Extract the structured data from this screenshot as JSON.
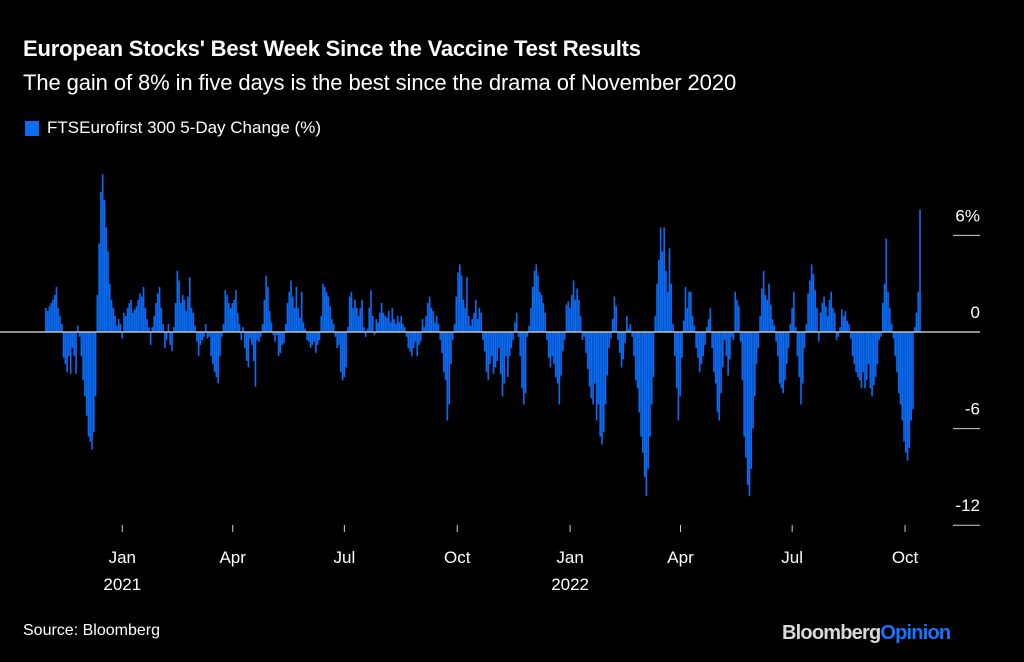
{
  "header": {
    "title": "European Stocks' Best Week Since the Vaccine Test Results",
    "subtitle": "The gain of 8% in five days is the best since the drama of November 2020"
  },
  "footer": {
    "source": "Source: Bloomberg",
    "brand_main": "Bloomberg",
    "brand_accent": "Opinion"
  },
  "colors": {
    "bar": "#0a6cf5",
    "zero_line": "#bfbfbf",
    "brand_accent": "#1a73ff",
    "background": "#000000"
  },
  "chart_data": {
    "type": "bar",
    "title": "European Stocks' Best Week Since the Vaccine Test Results",
    "subtitle": "The gain of 8% in five days is the best since the drama of November 2020",
    "legend": [
      {
        "label": "FTSEurofirst 300 5-Day Change (%)",
        "color": "#0a6cf5"
      }
    ],
    "legend_placement": "top-left",
    "xlabel": "",
    "ylabel": "",
    "x_range": [
      "2020-10-30",
      "2022-10-14"
    ],
    "ylim": [
      -13.5,
      9
    ],
    "y_ticks": [
      {
        "value": 6,
        "label": "6%"
      },
      {
        "value": 0,
        "label": "0"
      },
      {
        "value": -6,
        "label": "-6"
      },
      {
        "value": -12,
        "label": "-12"
      }
    ],
    "x_ticks": [
      {
        "date": "2021-01-01",
        "label": "Jan",
        "sublabel": "2021"
      },
      {
        "date": "2021-04-01",
        "label": "Apr",
        "sublabel": ""
      },
      {
        "date": "2021-07-01",
        "label": "Jul",
        "sublabel": ""
      },
      {
        "date": "2021-10-01",
        "label": "Oct",
        "sublabel": ""
      },
      {
        "date": "2022-01-01",
        "label": "Jan",
        "sublabel": "2022"
      },
      {
        "date": "2022-04-01",
        "label": "Apr",
        "sublabel": ""
      },
      {
        "date": "2022-07-01",
        "label": "Jul",
        "sublabel": ""
      },
      {
        "date": "2022-10-01",
        "label": "Oct",
        "sublabel": ""
      }
    ],
    "y_axis_side": "right",
    "grid": false,
    "series": [
      {
        "name": "FTSEurofirst 300 5-Day Change (%)",
        "start_date": "2020-10-30",
        "end_date": "2022-10-14",
        "frequency": "every-2-trading-days",
        "values": [
          1.5,
          1.3,
          1.6,
          1.8,
          2.0,
          2.3,
          2.8,
          1.5,
          1.0,
          0.5,
          -1.6,
          -2.0,
          -2.5,
          -1.5,
          -2.6,
          -1.0,
          -1.5,
          -2.6,
          0.4,
          -0.3,
          -1.5,
          -3.0,
          -4.0,
          -5.2,
          -6.5,
          -6.8,
          -7.3,
          -6.2,
          -4.0,
          2.3,
          5.5,
          8.7,
          9.8,
          8.2,
          6.5,
          5.0,
          3.0,
          2.0,
          1.5,
          1.0,
          0.4,
          0.8,
          0.5,
          -0.4,
          1.2,
          1.0,
          1.5,
          1.8,
          2.0,
          1.2,
          1.4,
          1.6,
          2.0,
          2.4,
          2.2,
          2.8,
          1.5,
          0.8,
          0.3,
          -0.8,
          0.3,
          1.0,
          1.8,
          2.4,
          2.8,
          1.5,
          0.5,
          -1.0,
          -0.5,
          0.5,
          -0.8,
          -1.2,
          0.3,
          1.8,
          3.8,
          3.2,
          1.8,
          2.3,
          2.0,
          1.3,
          2.2,
          3.4,
          1.5,
          1.2,
          0.4,
          -0.6,
          -1.5,
          -0.8,
          -0.5,
          -0.3,
          0.5,
          -0.4,
          -0.3,
          -1.5,
          -2.0,
          -2.5,
          -2.8,
          -3.2,
          -1.5,
          -0.3,
          0.5,
          2.6,
          2.3,
          1.8,
          1.5,
          1.8,
          2.0,
          2.6,
          1.2,
          0.5,
          -0.5,
          0.3,
          -1.0,
          -1.8,
          -2.2,
          -0.4,
          -0.8,
          -1.8,
          -3.4,
          -0.5,
          -0.6,
          -0.3,
          0.5,
          2.0,
          3.5,
          2.8,
          1.3,
          0.6,
          -0.2,
          -0.6,
          -0.2,
          -1.5,
          -1.3,
          -0.8,
          -0.7,
          0.5,
          1.8,
          2.5,
          3.2,
          2.2,
          1.5,
          2.8,
          1.5,
          0.9,
          2.5,
          0.6,
          0.2,
          -0.5,
          -0.6,
          -1.0,
          -0.8,
          -0.6,
          -1.3,
          -0.8,
          -0.5,
          1.0,
          3.0,
          2.8,
          2.5,
          2.2,
          1.6,
          0.8,
          0.5,
          -0.3,
          -1.0,
          -0.8,
          -2.5,
          -3.0,
          -2.8,
          -2.2,
          0.3,
          2.2,
          2.5,
          1.5,
          2.0,
          1.5,
          1.0,
          1.5,
          2.0,
          0.3,
          -0.3,
          0.2,
          1.5,
          2.6,
          1.0,
          -0.2,
          0.8,
          0.6,
          1.2,
          1.8,
          1.2,
          1.0,
          0.9,
          1.3,
          0.6,
          1.5,
          0.8,
          0.5,
          1.0,
          0.6,
          1.0,
          0.5,
          0.3,
          -0.3,
          -1.0,
          -1.2,
          -1.5,
          -1.0,
          -0.6,
          -1.5,
          -0.8,
          -0.6,
          0.8,
          0.3,
          1.0,
          1.8,
          2.2,
          1.5,
          1.3,
          0.6,
          1.0,
          0.5,
          -0.5,
          -1.3,
          -2.5,
          -3.0,
          -5.5,
          -4.5,
          -2.0,
          -0.5,
          0.5,
          2.2,
          3.7,
          4.2,
          3.5,
          2.0,
          1.5,
          3.4,
          1.0,
          0.4,
          0.8,
          1.2,
          2.0,
          0.8,
          1.5,
          1.2,
          -0.5,
          -1.2,
          -2.5,
          -3.0,
          -2.0,
          -1.5,
          -2.6,
          -2.2,
          -1.8,
          -1.0,
          -2.6,
          -4.0,
          -3.2,
          -1.5,
          -2.8,
          -1.5,
          -1.0,
          -0.5,
          0.6,
          1.2,
          -0.3,
          -1.5,
          -3.5,
          -4.5,
          -3.8,
          -0.3,
          0.4,
          1.5,
          2.8,
          3.8,
          4.2,
          3.5,
          2.5,
          2.3,
          1.8,
          1.2,
          -0.5,
          -1.6,
          -2.2,
          -1.5,
          -2.0,
          -2.8,
          -3.2,
          -4.5,
          -2.7,
          -1.2,
          -0.5,
          1.7,
          1.9,
          1.5,
          2.3,
          3.2,
          2.0,
          2.7,
          2.0,
          1.0,
          -0.5,
          -0.3,
          -1.3,
          -2.3,
          -3.4,
          -4.1,
          -4.5,
          -3.2,
          -5.5,
          -4.5,
          -6.5,
          -7.0,
          -6.2,
          -4.5,
          -2.7,
          -1.0,
          -0.4,
          0.8,
          2.2,
          1.6,
          -0.5,
          -1.3,
          -2.2,
          -1.7,
          -0.7,
          1.0,
          0.2,
          0.5,
          -0.3,
          -1.5,
          -3.0,
          -3.5,
          -5.0,
          -6.5,
          -7.5,
          -9.0,
          -10.2,
          -8.5,
          -6.5,
          -4.5,
          -2.8,
          1.0,
          3.0,
          4.5,
          6.5,
          5.0,
          6.5,
          3.8,
          2.5,
          5.2,
          3.0,
          0.5,
          -1.5,
          -3.5,
          -5.5,
          -4.0,
          -1.6,
          0.7,
          2.8,
          1.5,
          2.5,
          2.5,
          1.0,
          0.4,
          -1.0,
          -1.6,
          -2.5,
          -2.0,
          -1.5,
          -0.8,
          0.3,
          0.8,
          1.5,
          -1.0,
          -2.5,
          -3.2,
          -5.0,
          -5.5,
          -3.8,
          -2.2,
          -0.5,
          -1.5,
          -2.7,
          -1.7,
          -0.3,
          -0.5,
          2.5,
          2.0,
          1.6,
          -0.6,
          -3.0,
          -6.5,
          -7.8,
          -9.5,
          -10.2,
          -8.5,
          -6.0,
          -4.0,
          -2.0,
          -1.0,
          1.0,
          2.7,
          3.8,
          2.3,
          2.0,
          3.0,
          1.7,
          0.8,
          0.4,
          -0.6,
          -1.5,
          -3.2,
          -3.5,
          -3.8,
          -3.0,
          -2.0,
          -1.0,
          0.5,
          1.5,
          2.5,
          0.3,
          -1.5,
          -2.8,
          -4.5,
          -3.2,
          -1.0,
          0.5,
          2.4,
          3.2,
          4.2,
          3.6,
          2.6,
          1.5,
          -0.6,
          1.2,
          1.8,
          2.2,
          1.6,
          1.0,
          2.0,
          2.5,
          1.5,
          1.2,
          -0.5,
          -0.3,
          0.3,
          1.4,
          1.0,
          1.3,
          0.7,
          0.5,
          -0.4,
          -1.5,
          -2.0,
          -2.5,
          -2.8,
          -3.0,
          -3.5,
          -2.5,
          -3.5,
          -3.0,
          -2.0,
          -3.5,
          -4.0,
          -3.3,
          -2.8,
          -2.0,
          -0.5,
          -0.3,
          1.8,
          3.0,
          5.8,
          2.5,
          1.5,
          0.5,
          -0.4,
          -1.5,
          -2.5,
          -3.8,
          -4.5,
          -5.5,
          -6.8,
          -7.5,
          -8.0,
          -7.2,
          -5.5,
          -4.8,
          0.3,
          1.2,
          2.5,
          7.6
        ]
      }
    ]
  }
}
